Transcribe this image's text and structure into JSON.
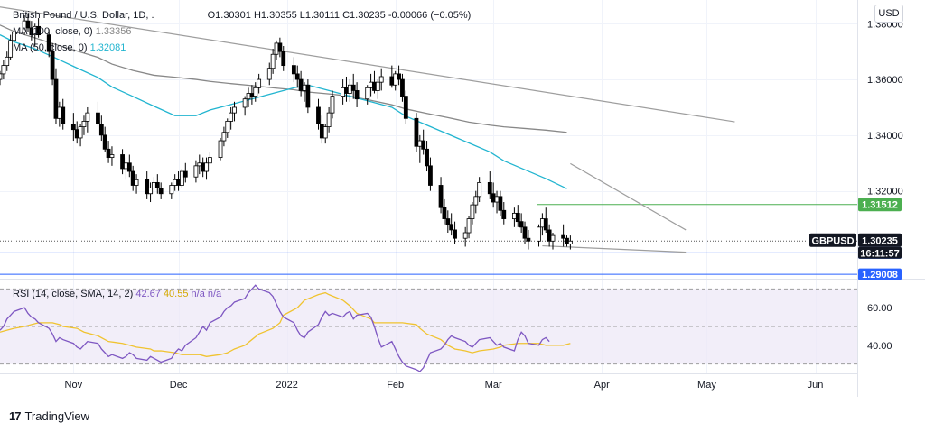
{
  "header": {
    "symbol": "British Pound / U.S. Dollar, 1D, .",
    "open_label": "O",
    "open": "1.30301",
    "high_label": "H",
    "high": "1.30355",
    "low_label": "L",
    "low": "1.30111",
    "close_label": "C",
    "close": "1.30235",
    "change": "-0.00066",
    "change_pct": "(−0.05%)"
  },
  "ma100": {
    "label": "MA (100, close, 0)",
    "value": "1.33356",
    "color": "#888888"
  },
  "ma50": {
    "label": "MA (50, close, 0)",
    "value": "1.32081",
    "color": "#22b5d0"
  },
  "currency_button": "USD",
  "price_axis": {
    "ticks": [
      "1.38000",
      "1.36000",
      "1.34000",
      "1.32000"
    ]
  },
  "price_labels": {
    "green_level": "1.31512",
    "symbol_tag": "GBPUSD",
    "last_price": "1.30235",
    "countdown": "16:11:57",
    "blue_level_1": "1.29775",
    "blue_level_2": "1.29008"
  },
  "rsi": {
    "label": "RSI (14, close, SMA, 14, 2)",
    "value": "42.67",
    "sma_value": "40.55",
    "extra": "n/a  n/a",
    "ticks": [
      "60.00",
      "40.00"
    ]
  },
  "time_axis": [
    "Nov",
    "Dec",
    "2022",
    "Feb",
    "Mar",
    "Apr",
    "May",
    "Jun"
  ],
  "footer": {
    "brand": "TradingView"
  },
  "colors": {
    "bull": "#ffffff",
    "bear": "#000000",
    "ma100": "#888888",
    "ma50": "#22b5d0",
    "rsi": "#7e57c2",
    "rsi_sma": "#f0c330",
    "green_level": "#4caf50",
    "blue_level": "#2962ff",
    "rsi_band": "#ede7f6"
  },
  "chart_data": {
    "type": "candlestick",
    "x_start": "2021-10-11",
    "x_end": "2022-06-13",
    "ylim": [
      1.2885,
      1.3885
    ],
    "rsi_ylim": [
      25,
      75
    ],
    "levels": [
      1.31512,
      1.29775,
      1.29008
    ],
    "candles": [
      [
        1.36,
        1.363,
        1.358,
        1.362
      ],
      [
        1.362,
        1.367,
        1.36,
        1.365
      ],
      [
        1.365,
        1.37,
        1.363,
        1.368
      ],
      [
        1.368,
        1.376,
        1.367,
        1.374
      ],
      [
        1.374,
        1.379,
        1.372,
        1.377
      ],
      [
        1.377,
        1.383,
        1.376,
        1.381
      ],
      [
        1.381,
        1.3835,
        1.377,
        1.3785
      ],
      [
        1.3785,
        1.381,
        1.374,
        1.376
      ],
      [
        1.376,
        1.38,
        1.372,
        1.379
      ],
      [
        1.379,
        1.382,
        1.375,
        1.376
      ],
      [
        1.376,
        1.378,
        1.368,
        1.37
      ],
      [
        1.37,
        1.373,
        1.358,
        1.36
      ],
      [
        1.36,
        1.364,
        1.344,
        1.346
      ],
      [
        1.346,
        1.352,
        1.343,
        1.35
      ],
      [
        1.35,
        1.353,
        1.342,
        1.344
      ],
      [
        1.344,
        1.348,
        1.338,
        1.342
      ],
      [
        1.342,
        1.345,
        1.337,
        1.339
      ],
      [
        1.339,
        1.344,
        1.336,
        1.343
      ],
      [
        1.343,
        1.347,
        1.34,
        1.345
      ],
      [
        1.345,
        1.35,
        1.341,
        1.348
      ],
      [
        1.348,
        1.352,
        1.343,
        1.344
      ],
      [
        1.344,
        1.347,
        1.338,
        1.34
      ],
      [
        1.34,
        1.343,
        1.334,
        1.335
      ],
      [
        1.335,
        1.338,
        1.33,
        1.332
      ],
      [
        1.332,
        1.336,
        1.329,
        1.333
      ],
      [
        1.333,
        1.335,
        1.326,
        1.328
      ],
      [
        1.328,
        1.332,
        1.324,
        1.33
      ],
      [
        1.33,
        1.333,
        1.325,
        1.327
      ],
      [
        1.327,
        1.329,
        1.32,
        1.322
      ],
      [
        1.322,
        1.326,
        1.319,
        1.324
      ],
      [
        1.324,
        1.327,
        1.317,
        1.319
      ],
      [
        1.319,
        1.323,
        1.316,
        1.321
      ],
      [
        1.321,
        1.325,
        1.319,
        1.323
      ],
      [
        1.323,
        1.326,
        1.319,
        1.321
      ],
      [
        1.321,
        1.323,
        1.317,
        1.319
      ],
      [
        1.319,
        1.323,
        1.317,
        1.322
      ],
      [
        1.322,
        1.326,
        1.32,
        1.324
      ],
      [
        1.324,
        1.327,
        1.32,
        1.322
      ],
      [
        1.322,
        1.328,
        1.321,
        1.327
      ],
      [
        1.327,
        1.33,
        1.323,
        1.325
      ],
      [
        1.325,
        1.331,
        1.323,
        1.329
      ],
      [
        1.329,
        1.333,
        1.326,
        1.33
      ],
      [
        1.33,
        1.332,
        1.325,
        1.327
      ],
      [
        1.327,
        1.332,
        1.324,
        1.33
      ],
      [
        1.33,
        1.334,
        1.327,
        1.332
      ],
      [
        1.332,
        1.339,
        1.331,
        1.338
      ],
      [
        1.338,
        1.343,
        1.336,
        1.341
      ],
      [
        1.341,
        1.346,
        1.339,
        1.345
      ],
      [
        1.345,
        1.35,
        1.342,
        1.348
      ],
      [
        1.348,
        1.352,
        1.345,
        1.35
      ],
      [
        1.35,
        1.354,
        1.347,
        1.353
      ],
      [
        1.353,
        1.357,
        1.35,
        1.355
      ],
      [
        1.355,
        1.358,
        1.351,
        1.354
      ],
      [
        1.354,
        1.359,
        1.352,
        1.357
      ],
      [
        1.357,
        1.362,
        1.355,
        1.36
      ],
      [
        1.36,
        1.366,
        1.358,
        1.364
      ],
      [
        1.364,
        1.371,
        1.362,
        1.369
      ],
      [
        1.369,
        1.374,
        1.367,
        1.373
      ],
      [
        1.373,
        1.375,
        1.368,
        1.37
      ],
      [
        1.37,
        1.372,
        1.363,
        1.365
      ],
      [
        1.365,
        1.368,
        1.359,
        1.362
      ],
      [
        1.362,
        1.365,
        1.357,
        1.36
      ],
      [
        1.36,
        1.363,
        1.354,
        1.356
      ],
      [
        1.356,
        1.359,
        1.352,
        1.358
      ],
      [
        1.358,
        1.36,
        1.348,
        1.35
      ],
      [
        1.35,
        1.353,
        1.342,
        1.344
      ],
      [
        1.344,
        1.347,
        1.337,
        1.339
      ],
      [
        1.339,
        1.344,
        1.337,
        1.343
      ],
      [
        1.343,
        1.35,
        1.341,
        1.348
      ],
      [
        1.348,
        1.356,
        1.346,
        1.354
      ],
      [
        1.354,
        1.36,
        1.351,
        1.357
      ],
      [
        1.357,
        1.361,
        1.352,
        1.355
      ],
      [
        1.355,
        1.36,
        1.352,
        1.358
      ],
      [
        1.358,
        1.362,
        1.353,
        1.356
      ],
      [
        1.356,
        1.359,
        1.35,
        1.353
      ],
      [
        1.353,
        1.358,
        1.351,
        1.357
      ],
      [
        1.357,
        1.362,
        1.354,
        1.359
      ],
      [
        1.359,
        1.363,
        1.355,
        1.356
      ],
      [
        1.356,
        1.36,
        1.353,
        1.359
      ],
      [
        1.359,
        1.364,
        1.356,
        1.361
      ],
      [
        1.361,
        1.365,
        1.357,
        1.358
      ],
      [
        1.358,
        1.363,
        1.356,
        1.362
      ],
      [
        1.362,
        1.365,
        1.358,
        1.36
      ],
      [
        1.36,
        1.362,
        1.352,
        1.354
      ],
      [
        1.354,
        1.356,
        1.344,
        1.346
      ],
      [
        1.346,
        1.348,
        1.334,
        1.336
      ],
      [
        1.336,
        1.34,
        1.33,
        1.338
      ],
      [
        1.338,
        1.342,
        1.333,
        1.335
      ],
      [
        1.335,
        1.338,
        1.327,
        1.329
      ],
      [
        1.329,
        1.332,
        1.32,
        1.322
      ],
      [
        1.322,
        1.325,
        1.312,
        1.314
      ],
      [
        1.314,
        1.317,
        1.308,
        1.31
      ],
      [
        1.31,
        1.313,
        1.305,
        1.308
      ],
      [
        1.308,
        1.312,
        1.304,
        1.306
      ],
      [
        1.306,
        1.309,
        1.301,
        1.303
      ],
      [
        1.303,
        1.307,
        1.3,
        1.305
      ],
      [
        1.305,
        1.311,
        1.303,
        1.31
      ],
      [
        1.31,
        1.316,
        1.308,
        1.315
      ],
      [
        1.315,
        1.32,
        1.312,
        1.318
      ],
      [
        1.318,
        1.325,
        1.316,
        1.323
      ],
      [
        1.323,
        1.327,
        1.317,
        1.319
      ],
      [
        1.319,
        1.323,
        1.314,
        1.316
      ],
      [
        1.316,
        1.32,
        1.312,
        1.318
      ],
      [
        1.318,
        1.32,
        1.311,
        1.313
      ],
      [
        1.313,
        1.316,
        1.308,
        1.31
      ],
      [
        1.31,
        1.314,
        1.307,
        1.312
      ],
      [
        1.312,
        1.315,
        1.307,
        1.309
      ],
      [
        1.309,
        1.312,
        1.305,
        1.307
      ],
      [
        1.307,
        1.309,
        1.301,
        1.303
      ],
      [
        1.303,
        1.306,
        1.299,
        1.302
      ],
      [
        1.302,
        1.308,
        1.3,
        1.307
      ],
      [
        1.307,
        1.312,
        1.304,
        1.31
      ],
      [
        1.31,
        1.314,
        1.305,
        1.306
      ],
      [
        1.306,
        1.308,
        1.3,
        1.302
      ],
      [
        1.302,
        1.305,
        1.299,
        1.304
      ],
      [
        1.304,
        1.308,
        1.3,
        1.303
      ],
      [
        1.303,
        1.304,
        1.3,
        1.301
      ],
      [
        1.301,
        1.304,
        1.299,
        1.302
      ]
    ],
    "ma100": [
      1.3795,
      1.3772,
      1.3749,
      1.3725,
      1.3702,
      1.3679,
      1.3655,
      1.3632,
      1.3615,
      1.3608,
      1.36,
      1.3593,
      1.3585,
      1.3578,
      1.357,
      1.3563,
      1.3555,
      1.3548,
      1.354,
      1.3525,
      1.3509,
      1.3494,
      1.3478,
      1.3463,
      1.3447,
      1.3436,
      1.343,
      1.3424,
      1.3418,
      1.341
    ],
    "ma50": [
      1.376,
      1.3735,
      1.371,
      1.3676,
      1.3641,
      1.3607,
      1.3573,
      1.3539,
      1.3504,
      1.347,
      1.347,
      1.349,
      1.351,
      1.353,
      1.355,
      1.357,
      1.358,
      1.356,
      1.354,
      1.352,
      1.35,
      1.3468,
      1.3436,
      1.3404,
      1.3372,
      1.334,
      1.3308,
      1.3276,
      1.3244,
      1.3208
    ],
    "rsi": [
      48,
      50,
      54,
      56,
      58,
      60,
      57,
      55,
      54,
      52,
      49,
      46,
      42,
      44,
      43,
      41,
      39,
      38,
      40,
      42,
      41,
      38,
      36,
      34,
      35,
      33,
      34,
      36,
      35,
      33,
      32,
      34,
      33,
      32,
      31,
      33,
      36,
      38,
      37,
      40,
      44,
      47,
      50,
      48,
      52,
      55,
      58,
      60,
      61,
      63,
      65,
      68,
      70,
      72,
      70,
      68,
      66,
      62,
      58,
      55,
      52,
      48,
      45,
      44,
      47,
      51,
      55,
      58,
      56,
      57,
      55,
      57,
      58,
      54,
      56,
      57,
      55,
      50,
      44,
      39,
      42,
      38,
      34,
      31,
      29,
      27,
      26,
      28,
      32,
      36,
      38,
      40,
      43,
      45,
      44,
      42,
      40,
      39,
      41,
      43,
      44,
      42,
      40,
      41,
      39,
      37,
      43,
      47,
      45,
      41,
      40,
      43,
      44,
      42
    ],
    "rsi_sma": [
      47,
      48,
      49,
      50,
      51,
      52,
      52,
      51,
      50,
      49,
      47,
      45,
      43,
      42,
      41,
      40,
      39,
      38,
      37,
      37,
      36,
      35,
      35,
      35,
      34,
      35,
      36,
      38,
      40,
      43,
      46,
      49,
      52,
      56,
      60,
      64,
      67,
      68,
      67,
      64,
      61,
      57,
      54,
      52,
      52,
      52,
      52,
      51,
      49,
      46,
      43,
      40,
      38,
      37,
      36,
      37,
      38,
      39,
      40,
      41,
      41,
      41,
      40,
      40,
      40,
      41
    ],
    "trendlines": [
      {
        "p1": [
          "2021-10-11",
          1.386
        ],
        "p2": [
          "2022-05-09",
          1.3448
        ],
        "color": "#9e9e9e"
      },
      {
        "p1": [
          "2022-03-23",
          1.3298
        ],
        "p2": [
          "2022-04-25",
          1.306
        ],
        "color": "#9e9e9e"
      },
      {
        "p1": [
          "2022-03-15",
          1.3003
        ],
        "p2": [
          "2022-04-25",
          1.298
        ],
        "color": "#9e9e9e"
      }
    ]
  }
}
